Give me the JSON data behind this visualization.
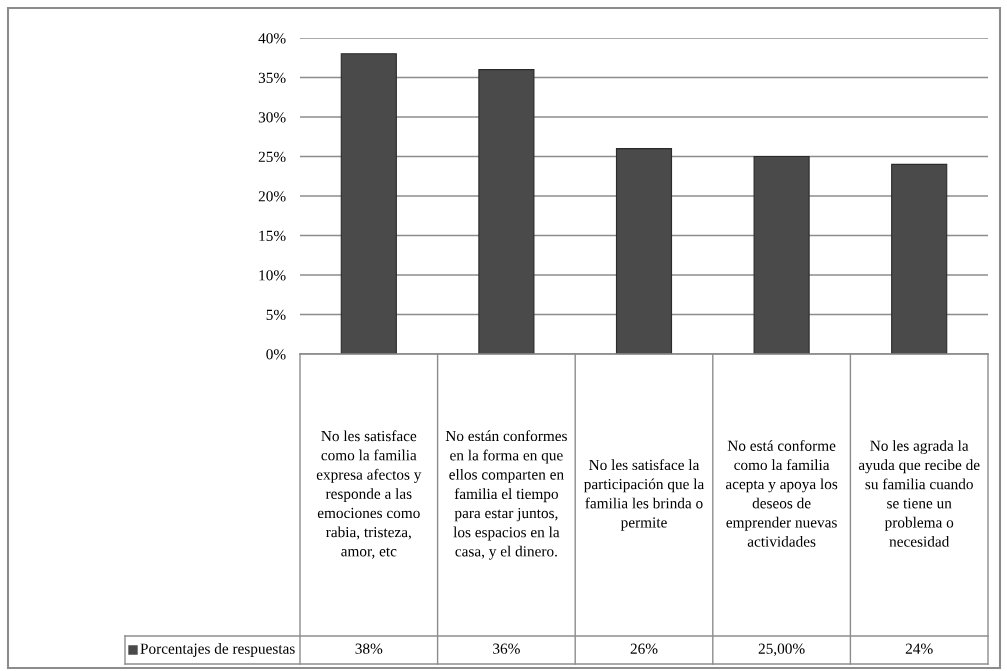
{
  "chart_data": {
    "type": "bar",
    "categories": [
      "No les satisface como la familia expresa afectos y responde a las emociones como rabia, tristeza, amor, etc",
      "No están conformes en la forma en que ellos comparten en familia el tiempo para estar juntos, los espacios en la casa, y el dinero.",
      "No les satisface la participación que la familia les brinda o permite",
      "No está conforme como la familia acepta y apoya los deseos de emprender nuevas actividades",
      "No les agrada la ayuda que recibe de su familia cuando se tiene un problema o necesidad"
    ],
    "series": [
      {
        "name": "Porcentajes de respuestas",
        "color": "#4a4a4a",
        "values": [
          38,
          36,
          26,
          25,
          24
        ],
        "value_labels": [
          "38%",
          "36%",
          "26%",
          "25,00%",
          "24%"
        ]
      }
    ],
    "ylim": [
      0,
      40
    ],
    "yticks": [
      {
        "value": 0,
        "label": "0%"
      },
      {
        "value": 5,
        "label": "5%"
      },
      {
        "value": 10,
        "label": "10%"
      },
      {
        "value": 15,
        "label": "15%"
      },
      {
        "value": 20,
        "label": "20%"
      },
      {
        "value": 25,
        "label": "25%"
      },
      {
        "value": 30,
        "label": "30%"
      },
      {
        "value": 35,
        "label": "35%"
      },
      {
        "value": 40,
        "label": "40%"
      }
    ],
    "grid": "y",
    "legend": "bottom"
  }
}
